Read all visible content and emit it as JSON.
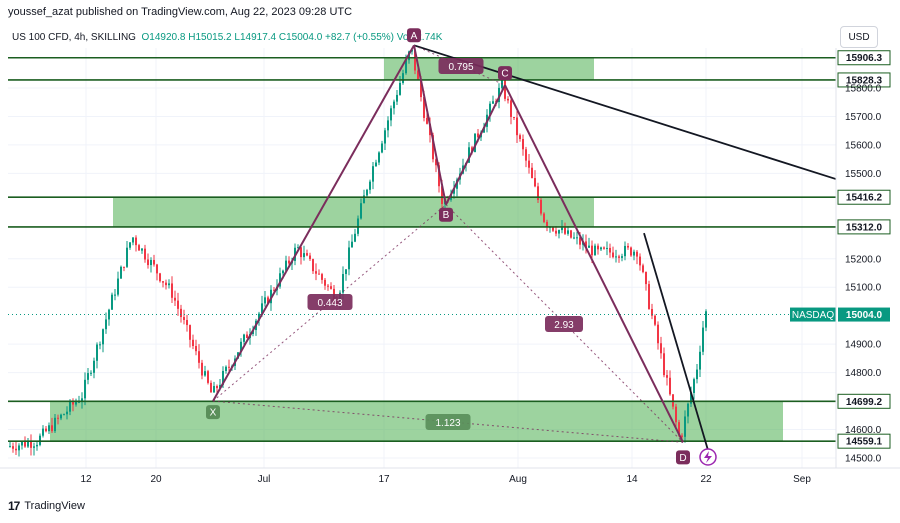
{
  "header": {
    "publisher": "youssef_azat published on TradingView.com, Aug 22, 2023 09:28 UTC"
  },
  "symbol": {
    "title": "US 100 CFD, 4h, SKILLING",
    "open": "O14920.8",
    "high": "H15015.2",
    "low": "L14917.4",
    "close": "C15004.0",
    "change": "+82.7 (+0.55%)",
    "volume": "Vol32.74K"
  },
  "currency_button": "USD",
  "branding": "TradingView",
  "colors": {
    "zone_fill": "#4caf50",
    "pattern": "#7b2d5c",
    "up": "#089981",
    "down": "#f23645",
    "level_label_bg": "#1b5e20"
  },
  "chart_data": {
    "type": "candlestick",
    "price_axis": {
      "ticks": [
        "15800.0",
        "15700.0",
        "15600.0",
        "15500.0",
        "15200.0",
        "15100.0",
        "14900.0",
        "14800.0",
        "14600.0",
        "14500.0"
      ],
      "range": [
        14460,
        15960
      ]
    },
    "time_axis": {
      "ticks": [
        "12",
        "20",
        "Jul",
        "17",
        "Aug",
        "14",
        "22",
        "Sep"
      ]
    },
    "current_price": {
      "name": "NASDAQ",
      "value": "15004.0"
    },
    "levels": [
      {
        "value": 15906.3,
        "label": "15906.3"
      },
      {
        "value": 15828.3,
        "label": "15828.3"
      },
      {
        "value": 15416.2,
        "label": "15416.2"
      },
      {
        "value": 15312.0,
        "label": "15312.0"
      },
      {
        "value": 14699.2,
        "label": "14699.2"
      },
      {
        "value": 14559.1,
        "label": "14559.1"
      }
    ],
    "zones": [
      {
        "top": 15906.3,
        "bottom": 15828.3
      },
      {
        "top": 15416.2,
        "bottom": 15312.0
      },
      {
        "top": 14699.2,
        "bottom": 14559.1
      }
    ],
    "pattern": {
      "points": [
        {
          "label": "X",
          "price": 14700
        },
        {
          "label": "A",
          "price": 15950
        },
        {
          "label": "B",
          "price": 15390
        },
        {
          "label": "C",
          "price": 15810
        },
        {
          "label": "D",
          "price": 14555
        }
      ],
      "ratios": [
        "0.795",
        "0.443",
        "2.93",
        "1.123"
      ]
    }
  }
}
